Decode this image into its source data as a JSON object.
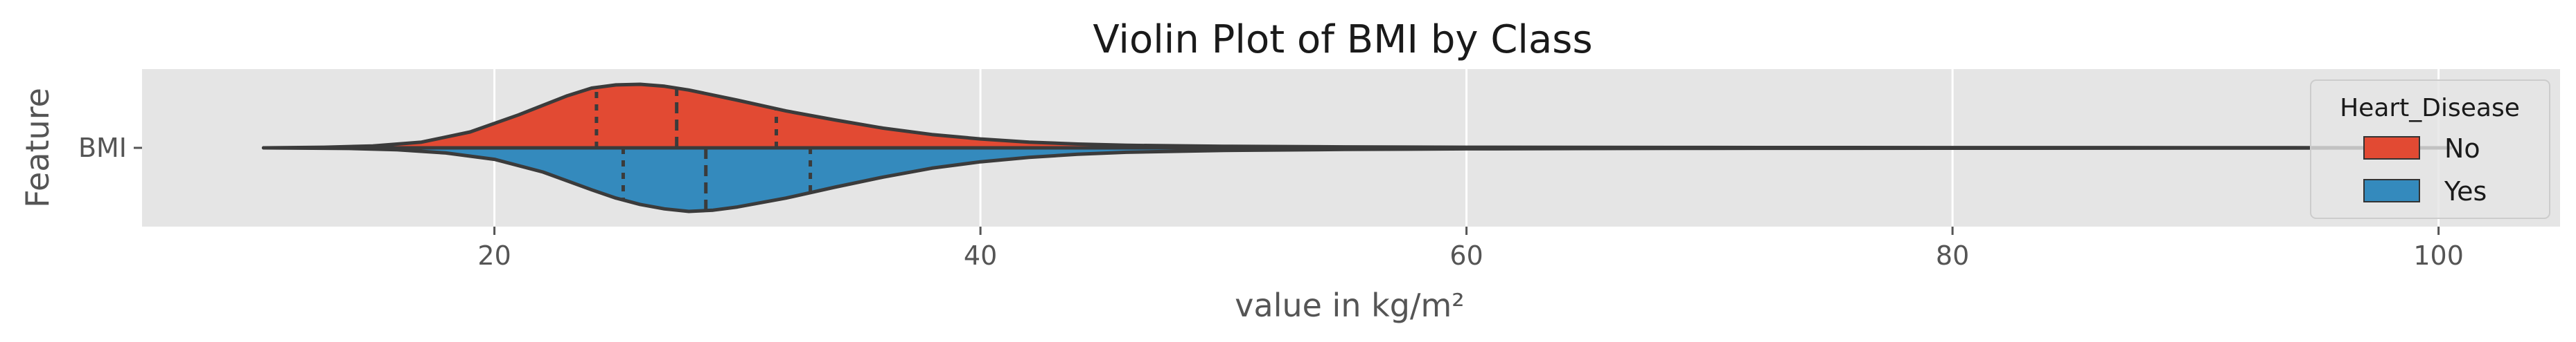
{
  "chart_data": {
    "type": "violin",
    "title": "Violin Plot of BMI by Class",
    "xlabel": "value in kg/m²",
    "ylabel": "Feature",
    "orientation": "horizontal",
    "split": true,
    "category": "BMI",
    "xlim": [
      5.5,
      105
    ],
    "xticks": [
      "20",
      "40",
      "60",
      "80",
      "100"
    ],
    "grid": true,
    "legend": {
      "title": "Heart_Disease",
      "placement": "right"
    },
    "series": [
      {
        "name": "No",
        "color": "#E24A33",
        "quartiles": [
          24.2,
          27.5,
          31.6
        ],
        "support": [
          10.5,
          100.5
        ],
        "density": [
          [
            10.5,
            0.0
          ],
          [
            13,
            0.01
          ],
          [
            15,
            0.03
          ],
          [
            17,
            0.09
          ],
          [
            19,
            0.25
          ],
          [
            21,
            0.52
          ],
          [
            23,
            0.82
          ],
          [
            24,
            0.94
          ],
          [
            25,
            0.99
          ],
          [
            26,
            1.0
          ],
          [
            27,
            0.97
          ],
          [
            28,
            0.91
          ],
          [
            30,
            0.75
          ],
          [
            32,
            0.58
          ],
          [
            34,
            0.44
          ],
          [
            36,
            0.31
          ],
          [
            38,
            0.21
          ],
          [
            40,
            0.14
          ],
          [
            42,
            0.09
          ],
          [
            44,
            0.06
          ],
          [
            46,
            0.04
          ],
          [
            50,
            0.025
          ],
          [
            55,
            0.015
          ],
          [
            60,
            0.01
          ],
          [
            70,
            0.006
          ],
          [
            80,
            0.004
          ],
          [
            90,
            0.003
          ],
          [
            100.5,
            0.0
          ]
        ]
      },
      {
        "name": "Yes",
        "color": "#348ABD",
        "quartiles": [
          25.3,
          28.7,
          33.0
        ],
        "support": [
          10.5,
          100.5
        ],
        "density": [
          [
            10.5,
            0.0
          ],
          [
            14,
            0.01
          ],
          [
            16,
            0.03
          ],
          [
            18,
            0.08
          ],
          [
            20,
            0.18
          ],
          [
            22,
            0.38
          ],
          [
            24,
            0.66
          ],
          [
            25,
            0.79
          ],
          [
            26,
            0.89
          ],
          [
            27,
            0.96
          ],
          [
            28,
            1.0
          ],
          [
            29,
            0.98
          ],
          [
            30,
            0.93
          ],
          [
            32,
            0.79
          ],
          [
            34,
            0.62
          ],
          [
            36,
            0.46
          ],
          [
            38,
            0.32
          ],
          [
            40,
            0.22
          ],
          [
            42,
            0.15
          ],
          [
            44,
            0.1
          ],
          [
            46,
            0.07
          ],
          [
            50,
            0.04
          ],
          [
            55,
            0.025
          ],
          [
            60,
            0.015
          ],
          [
            70,
            0.008
          ],
          [
            80,
            0.005
          ],
          [
            90,
            0.003
          ],
          [
            100.5,
            0.0
          ]
        ]
      }
    ]
  }
}
